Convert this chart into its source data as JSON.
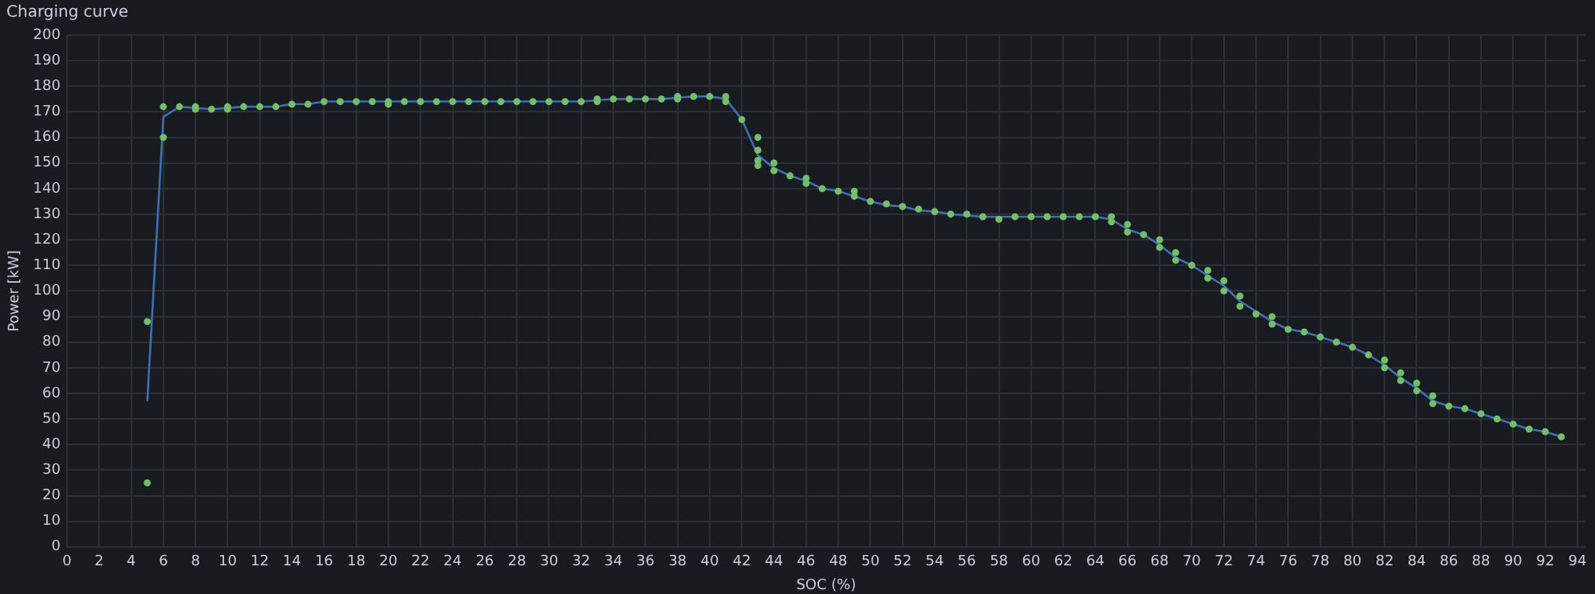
{
  "chart_data": {
    "type": "line",
    "title": "Charging curve",
    "xlabel": "SOC (%)",
    "ylabel": "Power [kW]",
    "xlim": [
      0,
      94.5
    ],
    "ylim": [
      0,
      200
    ],
    "xticks": [
      0,
      2,
      4,
      6,
      8,
      10,
      12,
      14,
      16,
      18,
      20,
      22,
      24,
      26,
      28,
      30,
      32,
      34,
      36,
      38,
      40,
      42,
      44,
      46,
      48,
      50,
      52,
      54,
      56,
      58,
      60,
      62,
      64,
      66,
      68,
      70,
      72,
      74,
      76,
      78,
      80,
      82,
      84,
      86,
      88,
      90,
      92,
      94
    ],
    "yticks": [
      0,
      10,
      20,
      30,
      40,
      50,
      60,
      70,
      80,
      90,
      100,
      110,
      120,
      130,
      140,
      150,
      160,
      170,
      180,
      190,
      200
    ],
    "grid": true,
    "legend": false,
    "series": [
      {
        "type": "line",
        "color": "#3f6fb3",
        "marker": "none",
        "x": [
          5,
          6,
          7,
          8,
          9,
          10,
          11,
          12,
          13,
          14,
          15,
          16,
          17,
          18,
          19,
          20,
          21,
          22,
          23,
          24,
          25,
          26,
          27,
          28,
          29,
          30,
          31,
          32,
          33,
          34,
          35,
          36,
          37,
          38,
          39,
          40,
          41,
          42,
          43,
          44,
          45,
          46,
          47,
          48,
          49,
          50,
          51,
          52,
          53,
          54,
          55,
          56,
          57,
          58,
          59,
          60,
          61,
          62,
          63,
          64,
          65,
          66,
          67,
          68,
          69,
          70,
          71,
          72,
          73,
          74,
          75,
          76,
          77,
          78,
          79,
          80,
          81,
          82,
          83,
          84,
          85,
          86,
          87,
          88,
          89,
          90,
          91,
          92,
          93
        ],
        "values": [
          57,
          168,
          172,
          171.5,
          171,
          171.5,
          172,
          172,
          172,
          173,
          173,
          174,
          174,
          174,
          174,
          174,
          174,
          174,
          174,
          174,
          174,
          174,
          174,
          174,
          174,
          174,
          174,
          174,
          174.5,
          175,
          175,
          175,
          175,
          175.5,
          176,
          176,
          175,
          167,
          153,
          148,
          145,
          143,
          140,
          139,
          137,
          135,
          133.5,
          133,
          131.5,
          131,
          130,
          129.5,
          129,
          129,
          129,
          129,
          129,
          129,
          129,
          129,
          128,
          124,
          122,
          118,
          113,
          110,
          106,
          102,
          96,
          92,
          88,
          85,
          84,
          82,
          80,
          78,
          75,
          71,
          66,
          62,
          57,
          55,
          54,
          52,
          50,
          48,
          46,
          45,
          43
        ]
      },
      {
        "type": "scatter",
        "color": "#73bf69",
        "marker": "circle",
        "x": [
          5,
          5,
          6,
          6,
          7,
          8,
          8,
          9,
          10,
          10,
          11,
          12,
          13,
          14,
          15,
          16,
          17,
          18,
          19,
          20,
          20,
          21,
          22,
          23,
          24,
          25,
          26,
          27,
          28,
          29,
          30,
          31,
          32,
          33,
          33,
          34,
          35,
          36,
          37,
          38,
          38,
          39,
          40,
          41,
          41,
          42,
          43,
          43,
          43,
          43,
          44,
          44,
          45,
          46,
          46,
          47,
          48,
          49,
          49,
          50,
          51,
          52,
          53,
          54,
          55,
          56,
          57,
          58,
          59,
          60,
          61,
          62,
          63,
          64,
          65,
          65,
          66,
          66,
          67,
          68,
          68,
          69,
          69,
          70,
          71,
          71,
          72,
          72,
          73,
          73,
          74,
          75,
          75,
          76,
          77,
          78,
          79,
          80,
          81,
          82,
          82,
          83,
          83,
          84,
          84,
          85,
          85,
          86,
          87,
          88,
          89,
          90,
          91,
          92,
          93
        ],
        "values": [
          88,
          25,
          172,
          160,
          172,
          172,
          171,
          171,
          172,
          171,
          172,
          172,
          172,
          173,
          173,
          174,
          174,
          174,
          174,
          174,
          173,
          174,
          174,
          174,
          174,
          174,
          174,
          174,
          174,
          174,
          174,
          174,
          174,
          175,
          174,
          175,
          175,
          175,
          175,
          176,
          175,
          176,
          176,
          176,
          174,
          167,
          160,
          155,
          151,
          149,
          150,
          147,
          145,
          144,
          142,
          140,
          139,
          139,
          137,
          135,
          134,
          133,
          132,
          131,
          130,
          130,
          129,
          128,
          129,
          129,
          129,
          129,
          129,
          129,
          129,
          127,
          126,
          123,
          122,
          120,
          117,
          115,
          112,
          110,
          108,
          105,
          104,
          100,
          98,
          94,
          91,
          90,
          87,
          85,
          84,
          82,
          80,
          78,
          75,
          73,
          70,
          68,
          65,
          64,
          61,
          59,
          56,
          55,
          54,
          52,
          50,
          48,
          46,
          45,
          43
        ]
      }
    ]
  }
}
